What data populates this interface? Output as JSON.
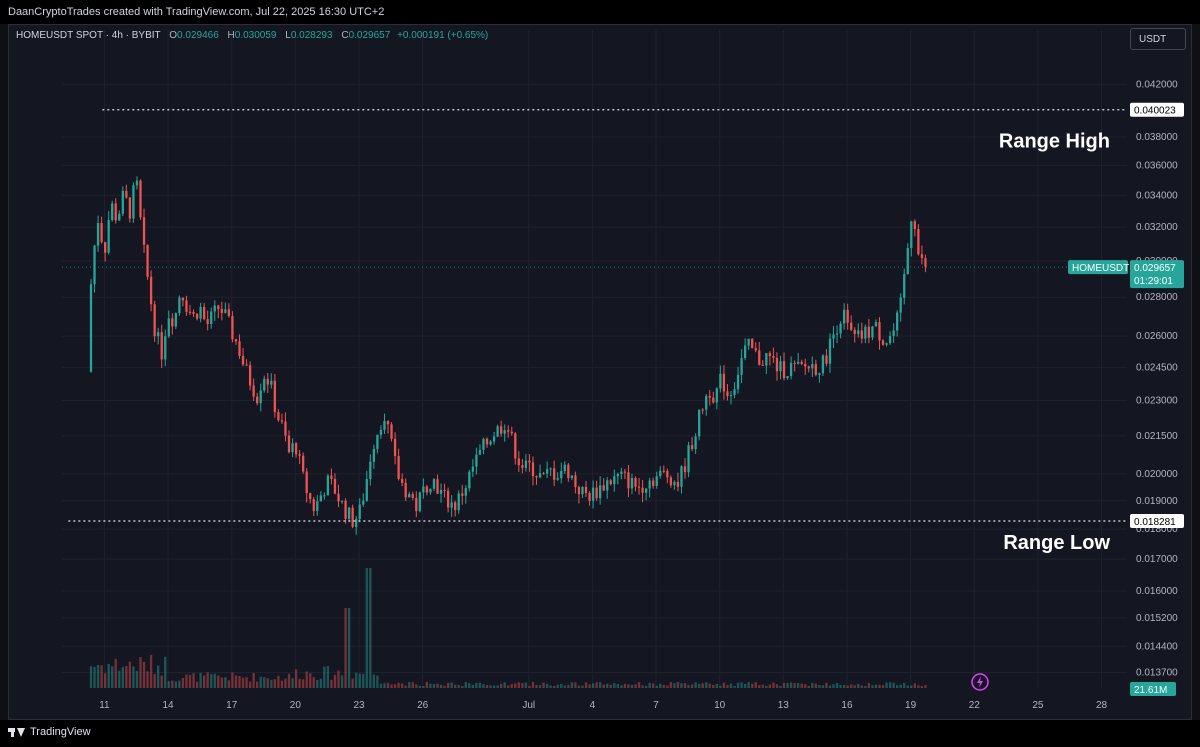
{
  "header": {
    "text": "DaanCryptoTrades created with TradingView.com, Jul 22, 2025 16:30 UTC+2"
  },
  "legend": {
    "symbol": "HOMEUSDT SPOT · 4h · BYBIT",
    "o_label": "O",
    "o": "0.029466",
    "h_label": "H",
    "h": "0.030059",
    "l_label": "L",
    "l": "0.028293",
    "c_label": "C",
    "c": "0.029657",
    "change": "+0.000191 (+0.65%)"
  },
  "currency": "USDT",
  "footer": {
    "brand": "TradingView"
  },
  "colors": {
    "up": "#26a69a",
    "down": "#ef5350",
    "grid": "#1e222d",
    "bg": "#141722",
    "text": "#b2b5be"
  },
  "chart_data": {
    "type": "candlestick",
    "timeframe": "4h",
    "y_ticks": [
      "0.042000",
      "0.038000",
      "0.036000",
      "0.034000",
      "0.032000",
      "0.030000",
      "0.028000",
      "0.026000",
      "0.024500",
      "0.023000",
      "0.021500",
      "0.020000",
      "0.019000",
      "0.018000",
      "0.017000",
      "0.016000",
      "0.015200",
      "0.014400",
      "0.013700"
    ],
    "ylim": [
      0.0133,
      0.044
    ],
    "scale": "log",
    "x_ticks": [
      "11",
      "14",
      "17",
      "20",
      "23",
      "26",
      "Jul",
      "4",
      "7",
      "10",
      "13",
      "16",
      "19",
      "22",
      "25",
      "28"
    ],
    "x_tick_days": [
      11,
      14,
      17,
      20,
      23,
      26,
      31,
      34,
      37,
      40,
      43,
      46,
      49,
      52,
      55,
      58
    ],
    "xlim": [
      9.0,
      59.2
    ],
    "last_price_label": {
      "symbol": "HOMEUSDT",
      "price": "0.029657",
      "countdown": "01:29:01",
      "value": 0.029657
    },
    "levels": [
      {
        "label": "Range High",
        "value": 0.040023,
        "price_text": "0.040023",
        "start_day": 10.9
      },
      {
        "label": "Range Low",
        "value": 0.018281,
        "price_text": "0.018281",
        "start_day": 9.3
      }
    ],
    "volume_label": "21.61M",
    "price_path": [
      [
        10.2,
        0.0243
      ],
      [
        10.4,
        0.0296
      ],
      [
        10.7,
        0.0325
      ],
      [
        11.0,
        0.0305
      ],
      [
        11.3,
        0.0335
      ],
      [
        11.6,
        0.0325
      ],
      [
        11.9,
        0.034
      ],
      [
        12.2,
        0.033
      ],
      [
        12.5,
        0.035
      ],
      [
        12.8,
        0.031
      ],
      [
        13.1,
        0.0285
      ],
      [
        13.4,
        0.0262
      ],
      [
        13.7,
        0.0252
      ],
      [
        14.0,
        0.0272
      ],
      [
        14.3,
        0.0268
      ],
      [
        14.6,
        0.0285
      ],
      [
        14.9,
        0.0275
      ],
      [
        15.2,
        0.027
      ],
      [
        15.5,
        0.0275
      ],
      [
        15.8,
        0.0265
      ],
      [
        16.1,
        0.027
      ],
      [
        16.4,
        0.0275
      ],
      [
        16.7,
        0.027
      ],
      [
        17.0,
        0.0262
      ],
      [
        17.3,
        0.0255
      ],
      [
        17.6,
        0.0245
      ],
      [
        17.9,
        0.0238
      ],
      [
        18.2,
        0.0232
      ],
      [
        18.5,
        0.0242
      ],
      [
        18.8,
        0.0238
      ],
      [
        19.1,
        0.0225
      ],
      [
        19.4,
        0.0218
      ],
      [
        19.7,
        0.0208
      ],
      [
        20.0,
        0.0212
      ],
      [
        20.3,
        0.02
      ],
      [
        20.6,
        0.0192
      ],
      [
        20.9,
        0.0187
      ],
      [
        21.2,
        0.0192
      ],
      [
        21.5,
        0.0197
      ],
      [
        21.8,
        0.0195
      ],
      [
        22.1,
        0.019
      ],
      [
        22.4,
        0.0186
      ],
      [
        22.7,
        0.0183
      ],
      [
        23.0,
        0.0185
      ],
      [
        23.3,
        0.0195
      ],
      [
        23.6,
        0.021
      ],
      [
        23.9,
        0.0218
      ],
      [
        24.2,
        0.0225
      ],
      [
        24.5,
        0.0212
      ],
      [
        24.8,
        0.02
      ],
      [
        25.1,
        0.0195
      ],
      [
        25.4,
        0.0192
      ],
      [
        25.7,
        0.0188
      ],
      [
        26.0,
        0.0193
      ],
      [
        26.3,
        0.0198
      ],
      [
        26.6,
        0.0197
      ],
      [
        26.9,
        0.0192
      ],
      [
        27.2,
        0.019
      ],
      [
        27.5,
        0.0188
      ],
      [
        27.8,
        0.0192
      ],
      [
        28.1,
        0.0197
      ],
      [
        28.4,
        0.0203
      ],
      [
        28.7,
        0.0208
      ],
      [
        29.0,
        0.0212
      ],
      [
        29.3,
        0.0216
      ],
      [
        29.6,
        0.0218
      ],
      [
        29.9,
        0.0221
      ],
      [
        30.2,
        0.0213
      ],
      [
        30.5,
        0.0206
      ],
      [
        30.8,
        0.0202
      ],
      [
        31.1,
        0.0203
      ],
      [
        31.4,
        0.02
      ],
      [
        31.7,
        0.0198
      ],
      [
        32.0,
        0.0201
      ],
      [
        32.3,
        0.02
      ],
      [
        32.6,
        0.0202
      ],
      [
        32.9,
        0.0201
      ],
      [
        33.2,
        0.0196
      ],
      [
        33.5,
        0.0193
      ],
      [
        33.8,
        0.0192
      ],
      [
        34.1,
        0.0193
      ],
      [
        34.4,
        0.0195
      ],
      [
        34.7,
        0.0197
      ],
      [
        35.0,
        0.0198
      ],
      [
        35.3,
        0.0199
      ],
      [
        35.6,
        0.0198
      ],
      [
        35.9,
        0.0196
      ],
      [
        36.2,
        0.0195
      ],
      [
        36.5,
        0.0197
      ],
      [
        36.8,
        0.0198
      ],
      [
        37.1,
        0.0199
      ],
      [
        37.4,
        0.02
      ],
      [
        37.7,
        0.0199
      ],
      [
        38.0,
        0.0196
      ],
      [
        38.3,
        0.0202
      ],
      [
        38.6,
        0.021
      ],
      [
        38.9,
        0.0218
      ],
      [
        39.2,
        0.0228
      ],
      [
        39.5,
        0.0235
      ],
      [
        39.8,
        0.0232
      ],
      [
        40.1,
        0.024
      ],
      [
        40.4,
        0.0232
      ],
      [
        40.7,
        0.0238
      ],
      [
        41.0,
        0.0248
      ],
      [
        41.3,
        0.0255
      ],
      [
        41.6,
        0.0252
      ],
      [
        41.9,
        0.0248
      ],
      [
        42.2,
        0.025
      ],
      [
        42.5,
        0.0248
      ],
      [
        42.8,
        0.0244
      ],
      [
        43.1,
        0.0244
      ],
      [
        43.4,
        0.0245
      ],
      [
        43.7,
        0.0244
      ],
      [
        44.0,
        0.0245
      ],
      [
        44.3,
        0.0246
      ],
      [
        44.6,
        0.0245
      ],
      [
        44.9,
        0.0247
      ],
      [
        45.2,
        0.0256
      ],
      [
        45.5,
        0.0265
      ],
      [
        45.8,
        0.0272
      ],
      [
        46.1,
        0.0262
      ],
      [
        46.4,
        0.0258
      ],
      [
        46.7,
        0.026
      ],
      [
        47.0,
        0.0262
      ],
      [
        47.3,
        0.0265
      ],
      [
        47.6,
        0.026
      ],
      [
        47.9,
        0.0258
      ],
      [
        48.2,
        0.0262
      ],
      [
        48.5,
        0.0272
      ],
      [
        48.8,
        0.03
      ],
      [
        49.1,
        0.0335
      ],
      [
        49.4,
        0.03
      ],
      [
        49.7,
        0.0297
      ]
    ]
  }
}
